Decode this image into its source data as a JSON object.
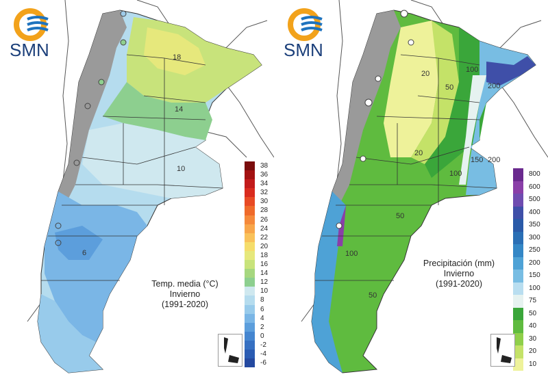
{
  "brand": {
    "name": "SMN",
    "logo_colors": [
      "#f2a21b",
      "#1e73be"
    ]
  },
  "panels": [
    {
      "id": "temperature",
      "caption": {
        "line1": "Temp. media (°C)",
        "line2": "Invierno",
        "line3": "(1991-2020)"
      },
      "contour_labels": [
        "18",
        "14",
        "10",
        "6"
      ],
      "legend": [
        {
          "label": "38",
          "color": "#7a0d0d"
        },
        {
          "label": "36",
          "color": "#a31212"
        },
        {
          "label": "34",
          "color": "#c21b1b"
        },
        {
          "label": "32",
          "color": "#d92b1e"
        },
        {
          "label": "30",
          "color": "#e84a24"
        },
        {
          "label": "28",
          "color": "#ef6a2a"
        },
        {
          "label": "26",
          "color": "#f5893a"
        },
        {
          "label": "24",
          "color": "#f8a64a"
        },
        {
          "label": "22",
          "color": "#f9c25a"
        },
        {
          "label": "20",
          "color": "#f5dd6b"
        },
        {
          "label": "18",
          "color": "#e6e87c"
        },
        {
          "label": "16",
          "color": "#c8e37b"
        },
        {
          "label": "14",
          "color": "#a6d77f"
        },
        {
          "label": "12",
          "color": "#8dcf8f"
        },
        {
          "label": "10",
          "color": "#cfe8ef"
        },
        {
          "label": "8",
          "color": "#b5dcee"
        },
        {
          "label": "6",
          "color": "#98cbeb"
        },
        {
          "label": "4",
          "color": "#7ab6e6"
        },
        {
          "label": "2",
          "color": "#5c9edc"
        },
        {
          "label": "0",
          "color": "#4586d0"
        },
        {
          "label": "-2",
          "color": "#3670c2"
        },
        {
          "label": "-4",
          "color": "#2b5cb3"
        },
        {
          "label": "-6",
          "color": "#2449a0"
        }
      ]
    },
    {
      "id": "precipitation",
      "caption": {
        "line1": "Precipitación (mm)",
        "line2": "Invierno",
        "line3": "(1991-2020)"
      },
      "contour_labels": [
        "100",
        "200",
        "20",
        "50",
        "20",
        "150",
        "100",
        "200",
        "50",
        "100",
        "50"
      ],
      "legend": [
        {
          "label": "800",
          "color": "#6a2a8e"
        },
        {
          "label": "600",
          "color": "#8a3fa8"
        },
        {
          "label": "500",
          "color": "#6f4cb0"
        },
        {
          "label": "400",
          "color": "#3f4fa8"
        },
        {
          "label": "350",
          "color": "#2a5aa8"
        },
        {
          "label": "300",
          "color": "#2a6fb5"
        },
        {
          "label": "250",
          "color": "#3487c6"
        },
        {
          "label": "200",
          "color": "#4ea2d6"
        },
        {
          "label": "150",
          "color": "#78bde3"
        },
        {
          "label": "100",
          "color": "#b9def0"
        },
        {
          "label": "75",
          "color": "#e6f2f0"
        },
        {
          "label": "50",
          "color": "#3aa63a"
        },
        {
          "label": "40",
          "color": "#5fbb3f"
        },
        {
          "label": "30",
          "color": "#8fcf4a"
        },
        {
          "label": "20",
          "color": "#c4e268"
        },
        {
          "label": "10",
          "color": "#eef29a"
        }
      ]
    }
  ]
}
